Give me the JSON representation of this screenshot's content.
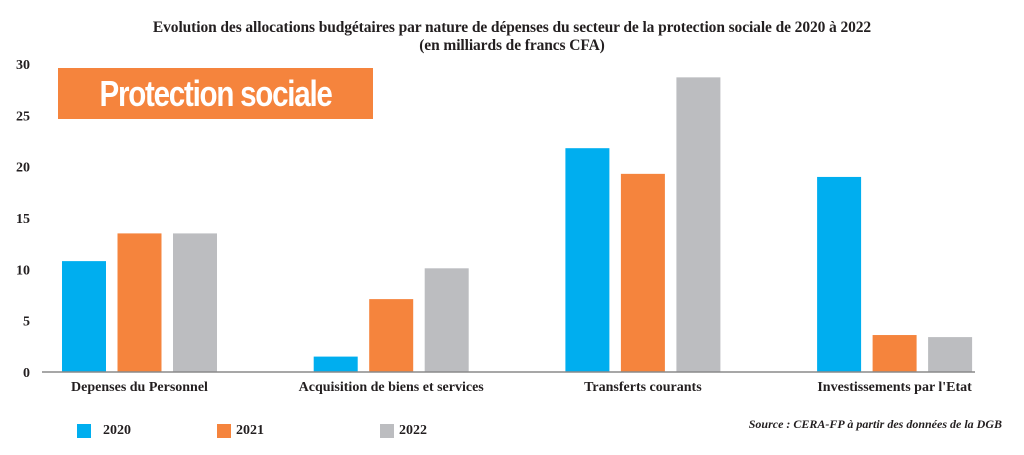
{
  "chart_data": {
    "type": "bar",
    "title": "Evolution des allocations budgétaires par nature de dépenses du secteur de la protection sociale de 2020 à 2022",
    "subtitle": "(en milliards de francs CFA)",
    "banner": "Protection sociale",
    "xlabel": "",
    "ylabel": "",
    "ylim": [
      0,
      30
    ],
    "yticks": [
      0,
      5,
      10,
      15,
      20,
      25,
      30
    ],
    "grid": false,
    "legend_position": "bottom-left",
    "categories": [
      "Depenses du Personnel",
      "Acquisition de biens et services",
      "Transferts courants",
      "Investissements par l'Etat"
    ],
    "series": [
      {
        "name": "2020",
        "color": "#00aeef",
        "values": [
          10.8,
          1.5,
          21.8,
          19.0
        ]
      },
      {
        "name": "2021",
        "color": "#f5843d",
        "values": [
          13.5,
          7.1,
          19.3,
          3.6
        ]
      },
      {
        "name": "2022",
        "color": "#bcbdc0",
        "values": [
          13.5,
          10.1,
          28.7,
          3.4
        ]
      }
    ],
    "source": "Source : CERA-FP à partir des données de la DGB",
    "axis_color": "#8a8a8a",
    "text_color": "#231f20"
  }
}
